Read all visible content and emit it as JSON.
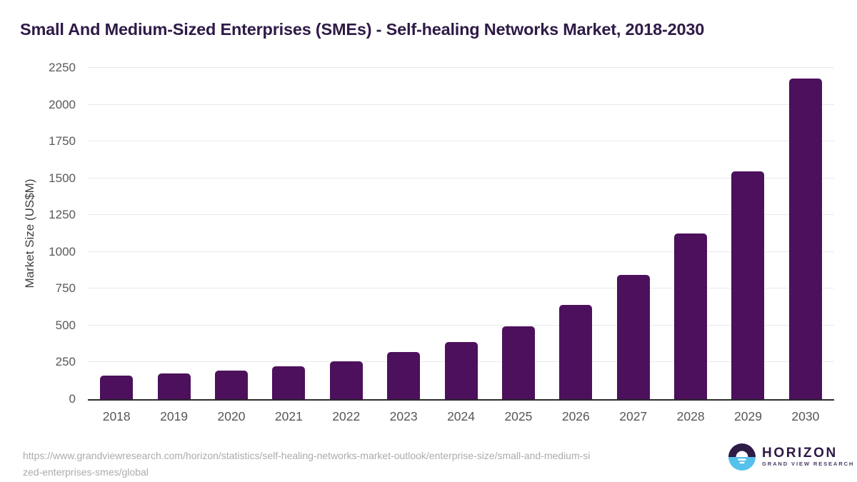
{
  "header": {
    "title": "Small And Medium-Sized Enterprises (SMEs) - Self-healing Networks Market, 2018-2030"
  },
  "chart_data": {
    "type": "bar",
    "title": "Small And Medium-Sized Enterprises (SMEs) - Self-healing Networks Market, 2018-2030",
    "categories": [
      "2018",
      "2019",
      "2020",
      "2021",
      "2022",
      "2023",
      "2024",
      "2025",
      "2026",
      "2027",
      "2028",
      "2029",
      "2030"
    ],
    "values": [
      160,
      174,
      193,
      223,
      257,
      320,
      387,
      494,
      641,
      843,
      1126,
      1545,
      2175
    ],
    "xlabel": "",
    "ylabel": "Market Size (US$M)",
    "ylim": [
      0,
      2250
    ],
    "ytick_step": 250,
    "grid": "horizontal",
    "legend": "none",
    "bar_color": "#4c105c",
    "gridline_color": "#e9e9e9",
    "axis_line_color": "#2b2b2b",
    "ytick_color": "#58595b",
    "xtick_color": "#565656"
  },
  "footer": {
    "source_url_line1": "https://www.grandviewresearch.com/horizon/statistics/self-healing-networks-market-outlook/enterprise-size/small-and-medium-si",
    "source_url_line2": "zed-enterprises-smes/global",
    "logo": {
      "brand": "HORIZON",
      "subbrand": "GRAND VIEW RESEARCH",
      "icon_purple": "#2e1b46",
      "icon_blue": "#56c1ea"
    }
  }
}
